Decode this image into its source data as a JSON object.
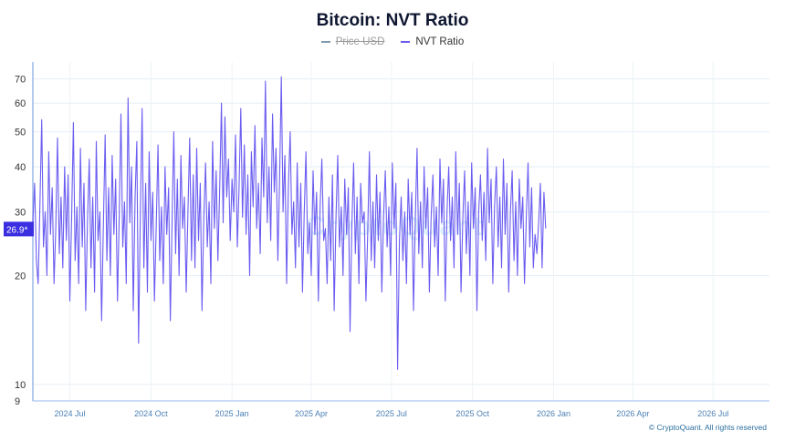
{
  "chart_data": {
    "type": "line",
    "title": "Bitcoin: NVT Ratio",
    "legend": [
      {
        "name": "Price USD",
        "color": "#7f9bb0",
        "visible": false
      },
      {
        "name": "NVT Ratio",
        "color": "#6a5cf0",
        "visible": true
      }
    ],
    "y_scale": "log",
    "ylim": [
      9,
      78
    ],
    "y_ticks": [
      9,
      10,
      20,
      30,
      40,
      50,
      60,
      70
    ],
    "x_range": [
      "2024-05-20",
      "2026-09-03"
    ],
    "x_ticks": [
      {
        "date": "2024-07-01",
        "label": "2024 Jul"
      },
      {
        "date": "2024-10-01",
        "label": "2024 Oct"
      },
      {
        "date": "2025-01-01",
        "label": "2025 Jan"
      },
      {
        "date": "2025-04-01",
        "label": "2025 Apr"
      },
      {
        "date": "2025-07-01",
        "label": "2025 Jul"
      },
      {
        "date": "2025-10-01",
        "label": "2025 Oct"
      },
      {
        "date": "2026-01-01",
        "label": "2026 Jan"
      },
      {
        "date": "2026-04-01",
        "label": "2026 Apr"
      },
      {
        "date": "2026-07-01",
        "label": "2026 Jul"
      }
    ],
    "current_value_label": "26.9*",
    "grid": true,
    "series": [
      {
        "name": "NVT Ratio",
        "start_date": "2024-05-20",
        "step_days": 2,
        "values": [
          28,
          36,
          22,
          19,
          31,
          54,
          24,
          30,
          20,
          44,
          26,
          35,
          19,
          27,
          48,
          23,
          33,
          21,
          40,
          25,
          38,
          17,
          29,
          53,
          22,
          31,
          19,
          45,
          24,
          36,
          16,
          28,
          42,
          21,
          33,
          18,
          47,
          25,
          30,
          15,
          27,
          49,
          22,
          35,
          20,
          43,
          26,
          37,
          17,
          29,
          56,
          24,
          32,
          19,
          62,
          28,
          40,
          16,
          33,
          47,
          13,
          30,
          58,
          21,
          36,
          18,
          44,
          25,
          34,
          17,
          27,
          46,
          22,
          31,
          19,
          40,
          26,
          35,
          15,
          28,
          50,
          23,
          37,
          20,
          43,
          27,
          33,
          18,
          30,
          48,
          22,
          38,
          21,
          45,
          25,
          36,
          16,
          29,
          41,
          24,
          32,
          19,
          47,
          27,
          39,
          22,
          34,
          60,
          28,
          55,
          33,
          42,
          25,
          37,
          30,
          49,
          24,
          35,
          58,
          29,
          46,
          26,
          38,
          20,
          44,
          31,
          52,
          27,
          36,
          23,
          48,
          33,
          69,
          28,
          40,
          25,
          56,
          34,
          45,
          22,
          37,
          71,
          30,
          43,
          19,
          35,
          50,
          26,
          32,
          21,
          41,
          24,
          36,
          18,
          30,
          44,
          23,
          28,
          20,
          39,
          26,
          34,
          17,
          31,
          42,
          25,
          27,
          19,
          33,
          22,
          38,
          16,
          29,
          43,
          24,
          31,
          20,
          37,
          26,
          35,
          14,
          27,
          41,
          23,
          33,
          19,
          36,
          28,
          30,
          17,
          26,
          44,
          22,
          32,
          21,
          38,
          25,
          34,
          18,
          29,
          39,
          24,
          31,
          20,
          41,
          27,
          36,
          11,
          25,
          33,
          22,
          30,
          19,
          37,
          26,
          34,
          16,
          28,
          45,
          23,
          32,
          21,
          40,
          27,
          35,
          18,
          29,
          38,
          24,
          31,
          20,
          42,
          28,
          37,
          17,
          30,
          40,
          25,
          33,
          21,
          44,
          26,
          36,
          18,
          29,
          39,
          23,
          32,
          20,
          41,
          27,
          35,
          16,
          30,
          38,
          25,
          34,
          22,
          45,
          28,
          37,
          19,
          31,
          40,
          24,
          33,
          21,
          42,
          26,
          36,
          18,
          30,
          39,
          22,
          32,
          20,
          37,
          27,
          33,
          19,
          29,
          41,
          24,
          35,
          21,
          26,
          23,
          28,
          36,
          21,
          34,
          27
        ]
      }
    ]
  },
  "watermark": "CryptoQuant",
  "credit": "© CryptoQuant. All rights reserved"
}
